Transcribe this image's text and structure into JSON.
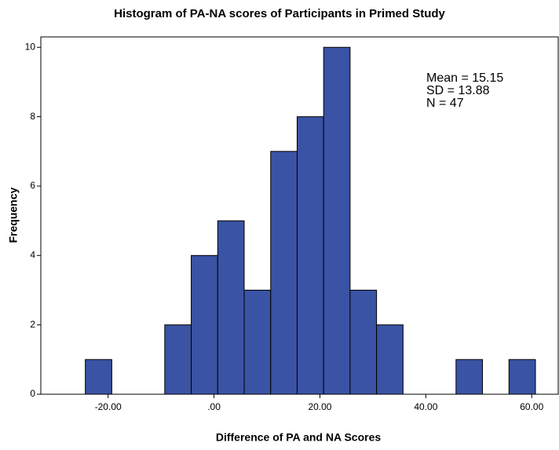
{
  "chart_data": {
    "type": "histogram",
    "title": "Histogram of PA-NA scores of Participants in Primed Study",
    "xlabel": "Difference of PA and NA Scores",
    "ylabel": "Frequency",
    "annotations": [
      "Mean = 15.15",
      "SD = 13.88",
      "N = 47"
    ],
    "bins": [
      -24.3,
      -19.3,
      -14.3,
      -9.3,
      -4.3,
      0.7,
      5.7,
      10.7,
      15.7,
      20.7,
      25.7,
      30.7,
      35.7,
      40.7,
      45.7,
      50.7,
      55.7,
      60.7
    ],
    "values": [
      1,
      0,
      0,
      2,
      4,
      5,
      3,
      7,
      8,
      10,
      3,
      2,
      0,
      0,
      1,
      0,
      1
    ],
    "color": "#3a53a4",
    "xlim": [
      -32.7,
      65
    ],
    "xticks": [
      {
        "value": -20,
        "label": "-20.00"
      },
      {
        "value": 0,
        "label": ".00"
      },
      {
        "value": 20,
        "label": "20.00"
      },
      {
        "value": 40,
        "label": "40.00"
      },
      {
        "value": 60,
        "label": "60.00"
      }
    ],
    "ylim": [
      0,
      10.3
    ],
    "yticks": [
      0,
      2,
      4,
      6,
      8,
      10
    ]
  }
}
